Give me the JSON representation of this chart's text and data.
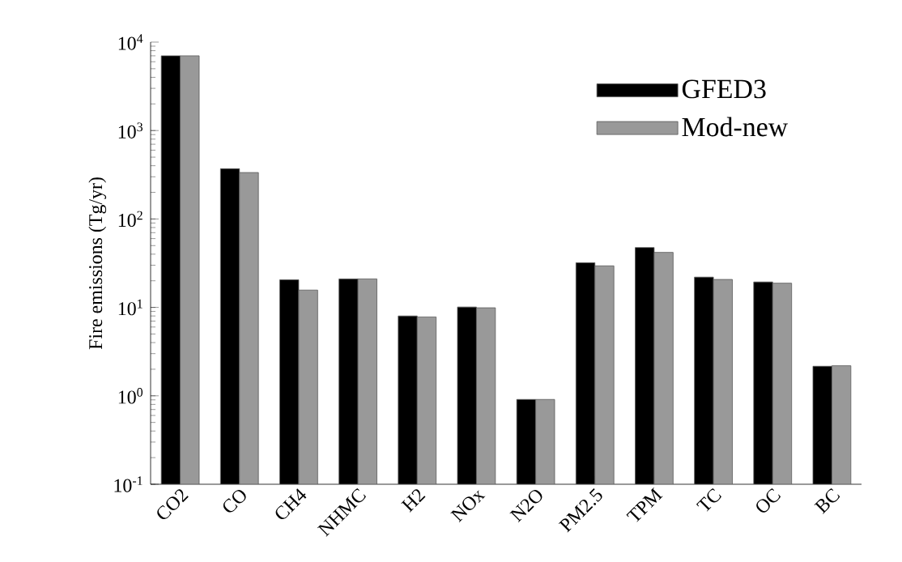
{
  "chart_data": {
    "type": "bar",
    "ylabel": "Fire emissions (Tg/yr)",
    "categories": [
      "CO2",
      "CO",
      "CH4",
      "NHMC",
      "H2",
      "NOx",
      "N2O",
      "PM2.5",
      "TPM",
      "TC",
      "OC",
      "BC"
    ],
    "series": [
      {
        "name": "GFED3",
        "color": "#000000",
        "values": [
          7000,
          370,
          20.5,
          21,
          8.0,
          10.1,
          0.91,
          32,
          47.5,
          22,
          19.4,
          2.16
        ]
      },
      {
        "name": "Mod-new",
        "color": "#999999",
        "values": [
          7000,
          335,
          15.7,
          21,
          7.8,
          9.9,
          0.91,
          29.5,
          41.9,
          20.7,
          18.8,
          2.19
        ]
      }
    ],
    "log": "y",
    "ylim": [
      0.1,
      10000
    ],
    "yticks": [
      {
        "value": 0.1,
        "label": "10$^{-1}$"
      },
      {
        "value": 1,
        "label": "10$^{0}$"
      },
      {
        "value": 10,
        "label": "10$^{1}$"
      },
      {
        "value": 100,
        "label": "10$^{2}$"
      },
      {
        "value": 1000,
        "label": "10$^{3}$"
      },
      {
        "value": 10000,
        "label": "10$^{4}$"
      }
    ],
    "legend": "top right",
    "grid": false
  }
}
